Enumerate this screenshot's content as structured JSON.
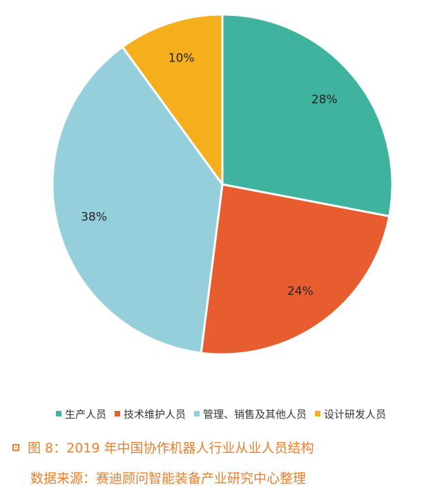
{
  "chart_data": {
    "type": "pie",
    "slices": [
      {
        "name": "生产人员",
        "value": 28,
        "label": "28%",
        "color": "#40b39e"
      },
      {
        "name": "技术维护人员",
        "value": 24,
        "label": "24%",
        "color": "#e85d2f"
      },
      {
        "name": "管理、销售及其他人员",
        "value": 38,
        "label": "38%",
        "color": "#94cfdb"
      },
      {
        "name": "设计研发人员",
        "value": 10,
        "label": "10%",
        "color": "#f5ae1c"
      }
    ],
    "legend_position": "bottom"
  },
  "caption": {
    "title": "图 8：2019 年中国协作机器人行业从业人员结构",
    "source": "数据来源：赛迪顾问智能装备产业研究中心整理",
    "color": "#ee7d2c"
  }
}
